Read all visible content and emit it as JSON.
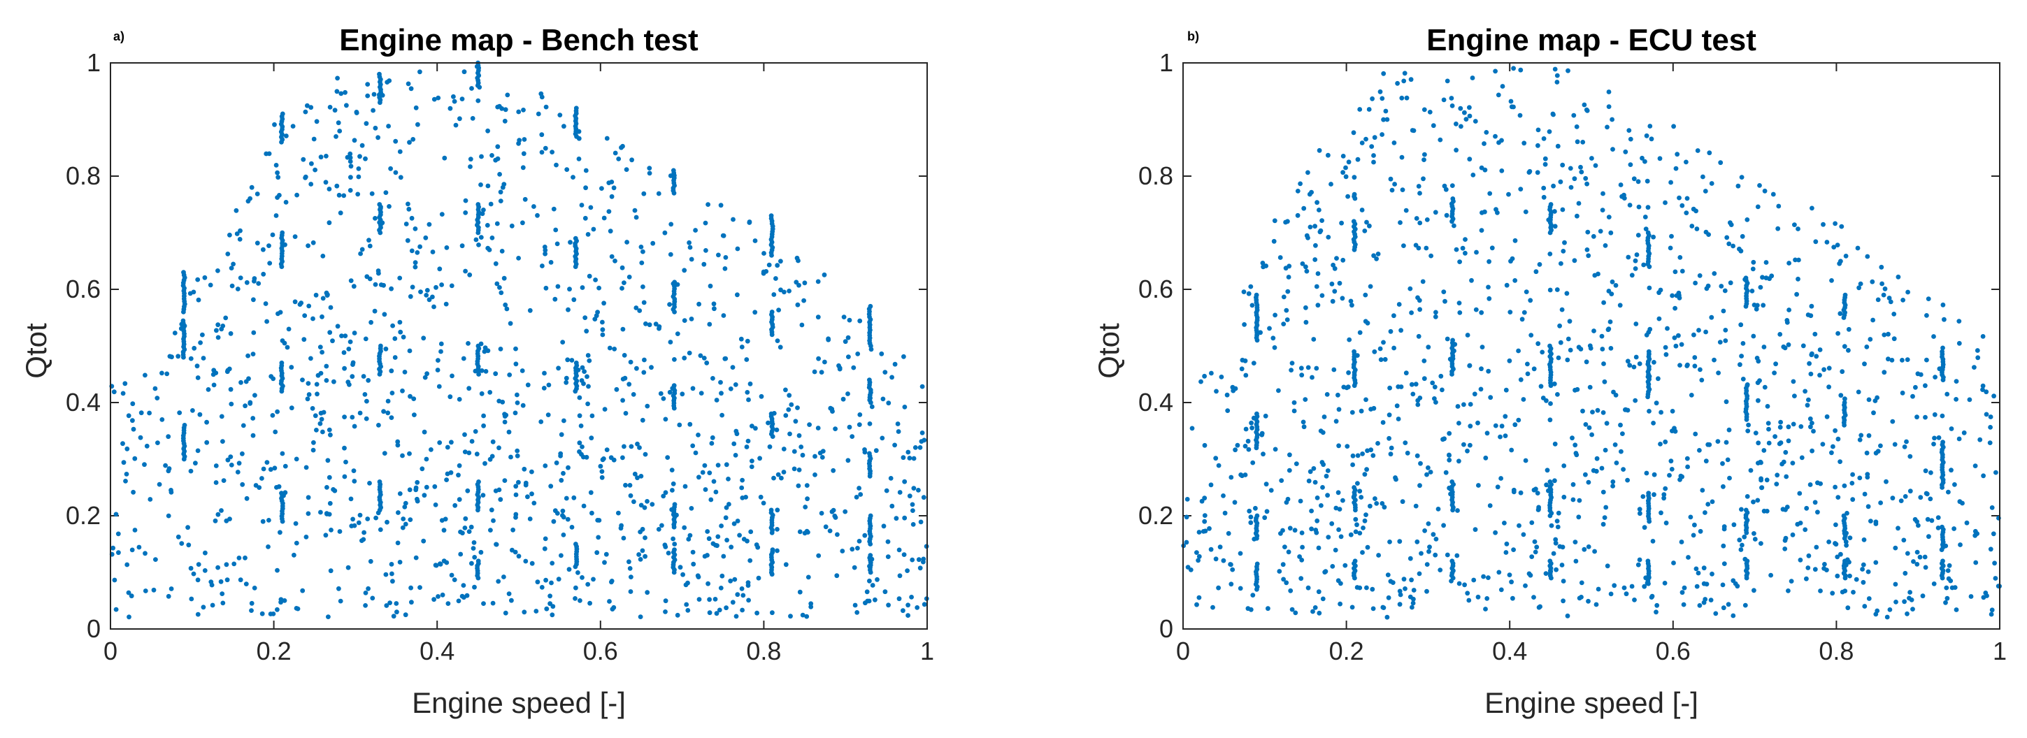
{
  "colors": {
    "points": "#0072BD",
    "axes": "#262626"
  },
  "chart_data": [
    {
      "type": "scatter",
      "panel_label": "a)",
      "title": "Engine map - Bench test",
      "xlabel": "Engine speed [-]",
      "ylabel": "Qtot",
      "xlim": [
        0,
        1
      ],
      "ylim": [
        0,
        1
      ],
      "xticks": [
        "0",
        "0.2",
        "0.4",
        "0.6",
        "0.8",
        "1"
      ],
      "yticks": [
        "0",
        "0.2",
        "0.4",
        "0.6",
        "0.8",
        "1"
      ],
      "grid": false,
      "legend": "none",
      "envelope": [
        [
          0.0,
          0.45
        ],
        [
          0.05,
          0.45
        ],
        [
          0.1,
          0.6
        ],
        [
          0.15,
          0.74
        ],
        [
          0.2,
          0.9
        ],
        [
          0.25,
          0.98
        ],
        [
          0.3,
          0.98
        ],
        [
          0.4,
          0.99
        ],
        [
          0.45,
          1.0
        ],
        [
          0.5,
          0.97
        ],
        [
          0.6,
          0.88
        ],
        [
          0.7,
          0.79
        ],
        [
          0.8,
          0.72
        ],
        [
          0.85,
          0.67
        ],
        [
          0.9,
          0.58
        ],
        [
          0.95,
          0.52
        ],
        [
          1.0,
          0.44
        ]
      ],
      "envelope_min": 0.02,
      "random_point_count": 1400,
      "seed": 7,
      "vertical_clusters": [
        [
          0.09,
          0.3,
          0.36
        ],
        [
          0.09,
          0.48,
          0.54
        ],
        [
          0.09,
          0.56,
          0.63
        ],
        [
          0.21,
          0.86,
          0.91
        ],
        [
          0.21,
          0.64,
          0.7
        ],
        [
          0.21,
          0.42,
          0.47
        ],
        [
          0.21,
          0.19,
          0.24
        ],
        [
          0.33,
          0.93,
          0.98
        ],
        [
          0.33,
          0.7,
          0.75
        ],
        [
          0.33,
          0.45,
          0.5
        ],
        [
          0.33,
          0.21,
          0.26
        ],
        [
          0.45,
          0.96,
          1.0
        ],
        [
          0.45,
          0.7,
          0.75
        ],
        [
          0.45,
          0.45,
          0.5
        ],
        [
          0.45,
          0.21,
          0.26
        ],
        [
          0.45,
          0.09,
          0.12
        ],
        [
          0.57,
          0.87,
          0.92
        ],
        [
          0.57,
          0.64,
          0.69
        ],
        [
          0.57,
          0.42,
          0.47
        ],
        [
          0.57,
          0.11,
          0.15
        ],
        [
          0.69,
          0.77,
          0.81
        ],
        [
          0.69,
          0.56,
          0.61
        ],
        [
          0.69,
          0.39,
          0.43
        ],
        [
          0.69,
          0.18,
          0.22
        ],
        [
          0.69,
          0.1,
          0.14
        ],
        [
          0.81,
          0.66,
          0.73
        ],
        [
          0.81,
          0.52,
          0.56
        ],
        [
          0.81,
          0.34,
          0.38
        ],
        [
          0.81,
          0.17,
          0.21
        ],
        [
          0.81,
          0.1,
          0.14
        ],
        [
          0.93,
          0.5,
          0.57
        ],
        [
          0.93,
          0.4,
          0.44
        ],
        [
          0.93,
          0.27,
          0.31
        ],
        [
          0.93,
          0.15,
          0.2
        ],
        [
          0.93,
          0.1,
          0.13
        ]
      ]
    },
    {
      "type": "scatter",
      "panel_label": "b)",
      "title": "Engine map - ECU test",
      "xlabel": "Engine speed [-]",
      "ylabel": "Qtot",
      "xlim": [
        0,
        1
      ],
      "ylim": [
        0,
        1
      ],
      "xticks": [
        "0",
        "0.2",
        "0.4",
        "0.6",
        "0.8",
        "1"
      ],
      "yticks": [
        "0",
        "0.2",
        "0.4",
        "0.6",
        "0.8",
        "1"
      ],
      "grid": false,
      "legend": "none",
      "envelope": [
        [
          0.0,
          0.4
        ],
        [
          0.05,
          0.5
        ],
        [
          0.1,
          0.7
        ],
        [
          0.15,
          0.82
        ],
        [
          0.2,
          0.9
        ],
        [
          0.25,
          0.99
        ],
        [
          0.3,
          0.98
        ],
        [
          0.4,
          0.99
        ],
        [
          0.45,
          1.0
        ],
        [
          0.5,
          0.98
        ],
        [
          0.55,
          0.93
        ],
        [
          0.6,
          0.89
        ],
        [
          0.7,
          0.8
        ],
        [
          0.75,
          0.77
        ],
        [
          0.8,
          0.72
        ],
        [
          0.85,
          0.67
        ],
        [
          0.9,
          0.6
        ],
        [
          0.95,
          0.57
        ],
        [
          1.0,
          0.48
        ]
      ],
      "envelope_min": 0.02,
      "random_point_count": 1450,
      "seed": 23,
      "vertical_clusters": [
        [
          0.09,
          0.51,
          0.59
        ],
        [
          0.09,
          0.32,
          0.38
        ],
        [
          0.09,
          0.16,
          0.2
        ],
        [
          0.09,
          0.07,
          0.11
        ],
        [
          0.21,
          0.67,
          0.72
        ],
        [
          0.21,
          0.43,
          0.49
        ],
        [
          0.21,
          0.21,
          0.25
        ],
        [
          0.21,
          0.09,
          0.12
        ],
        [
          0.33,
          0.72,
          0.76
        ],
        [
          0.33,
          0.45,
          0.51
        ],
        [
          0.33,
          0.21,
          0.26
        ],
        [
          0.33,
          0.09,
          0.12
        ],
        [
          0.45,
          0.7,
          0.75
        ],
        [
          0.45,
          0.43,
          0.5
        ],
        [
          0.45,
          0.2,
          0.26
        ],
        [
          0.45,
          0.09,
          0.12
        ],
        [
          0.57,
          0.64,
          0.7
        ],
        [
          0.57,
          0.41,
          0.49
        ],
        [
          0.57,
          0.19,
          0.24
        ],
        [
          0.57,
          0.08,
          0.12
        ],
        [
          0.69,
          0.57,
          0.62
        ],
        [
          0.69,
          0.37,
          0.43
        ],
        [
          0.69,
          0.17,
          0.21
        ],
        [
          0.69,
          0.09,
          0.12
        ],
        [
          0.81,
          0.55,
          0.59
        ],
        [
          0.81,
          0.36,
          0.4
        ],
        [
          0.81,
          0.16,
          0.2
        ],
        [
          0.81,
          0.09,
          0.12
        ],
        [
          0.93,
          0.44,
          0.49
        ],
        [
          0.93,
          0.25,
          0.33
        ],
        [
          0.93,
          0.14,
          0.18
        ],
        [
          0.93,
          0.09,
          0.12
        ]
      ]
    }
  ]
}
